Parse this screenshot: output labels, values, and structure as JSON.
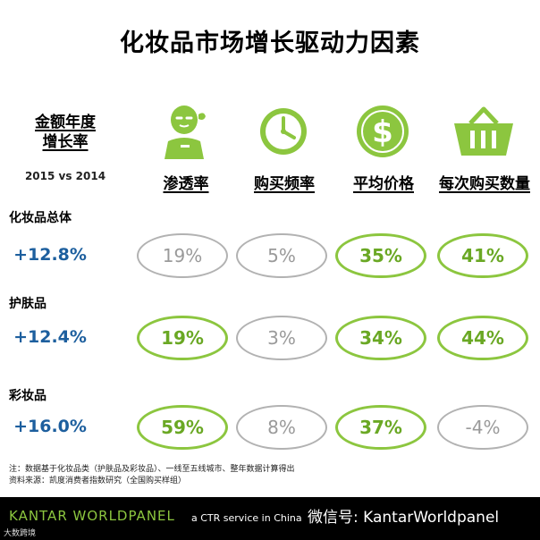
{
  "title": "化妆品市场增长驱动力因素",
  "metric_label_line1": "金额年度",
  "metric_label_line2": "增长率",
  "period": "2015 vs 2014",
  "drivers": [
    "渗透率",
    "购买频率",
    "平均价格",
    "每次购买数量"
  ],
  "icons": [
    "person-icon",
    "clock-icon",
    "dollar-coin-icon",
    "shopping-basket-icon"
  ],
  "colors": {
    "accent_green": "#8cc63f",
    "neutral_gray": "#b2b2b2",
    "growth_blue": "#1d5f9e"
  },
  "chart_data": {
    "type": "table",
    "title": "化妆品市场增长驱动力因素",
    "columns": [
      "渗透率",
      "购买频率",
      "平均价格",
      "每次购买数量"
    ],
    "rows": [
      {
        "name": "化妆品总体",
        "growth": "+12.8%",
        "values": [
          "19%",
          "5%",
          "35%",
          "41%"
        ],
        "highlight": [
          false,
          false,
          true,
          true
        ]
      },
      {
        "name": "护肤品",
        "growth": "+12.4%",
        "values": [
          "19%",
          "3%",
          "34%",
          "44%"
        ],
        "highlight": [
          true,
          false,
          true,
          true
        ]
      },
      {
        "name": "彩妆品",
        "growth": "+16.0%",
        "values": [
          "59%",
          "8%",
          "37%",
          "-4%"
        ],
        "highlight": [
          true,
          false,
          true,
          false
        ]
      }
    ]
  },
  "notes": {
    "line1": "注：数据基于化妆品类（护肤品及彩妆品）、一线至五线城市、整年数据计算得出",
    "line2": "资料来源：凯度消费者指数研究（全国购买样组）"
  },
  "footer": {
    "brand": "KANTAR WORLDPANEL",
    "tagline": "a CTR service in China",
    "wechat": "微信号: KantarWorldpanel",
    "watermark": "大数跨境"
  }
}
